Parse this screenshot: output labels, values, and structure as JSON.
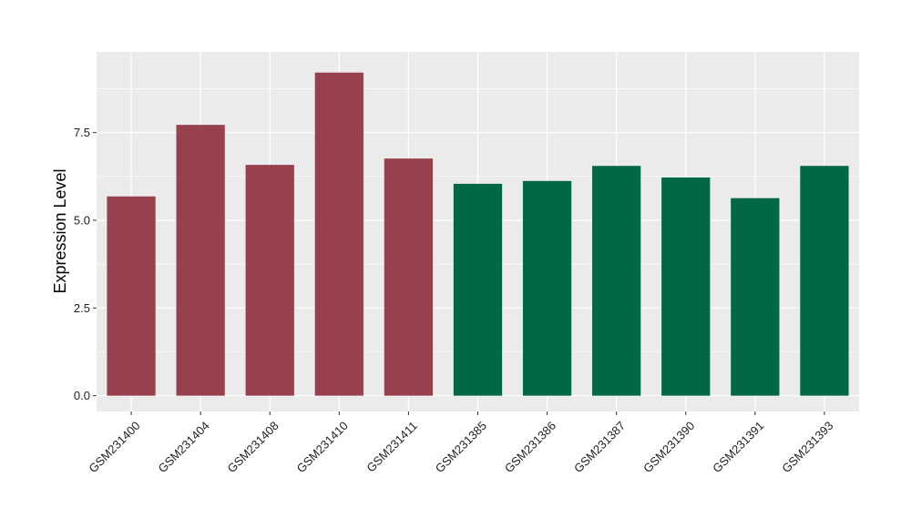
{
  "chart_data": {
    "type": "bar",
    "title": "",
    "xlabel": "",
    "ylabel": "Expression Level",
    "categories": [
      "GSM231400",
      "GSM231404",
      "GSM231408",
      "GSM231410",
      "GSM231411",
      "GSM231385",
      "GSM231386",
      "GSM231387",
      "GSM231390",
      "GSM231391",
      "GSM231393"
    ],
    "values": [
      5.68,
      7.72,
      6.58,
      9.21,
      6.76,
      6.04,
      6.12,
      6.55,
      6.22,
      5.63,
      6.55
    ],
    "bar_colors": [
      "#98414e",
      "#98414e",
      "#98414e",
      "#98414e",
      "#98414e",
      "#006747",
      "#006747",
      "#006747",
      "#006747",
      "#006747",
      "#006747"
    ],
    "ylim": [
      -0.45,
      9.8
    ],
    "yticks": [
      0.0,
      2.5,
      5.0,
      7.5
    ],
    "ytick_labels": [
      "0.0",
      "2.5",
      "5.0",
      "7.5"
    ],
    "grid": true,
    "panel_background": "#ebebeb",
    "grid_color": "#ffffff"
  }
}
